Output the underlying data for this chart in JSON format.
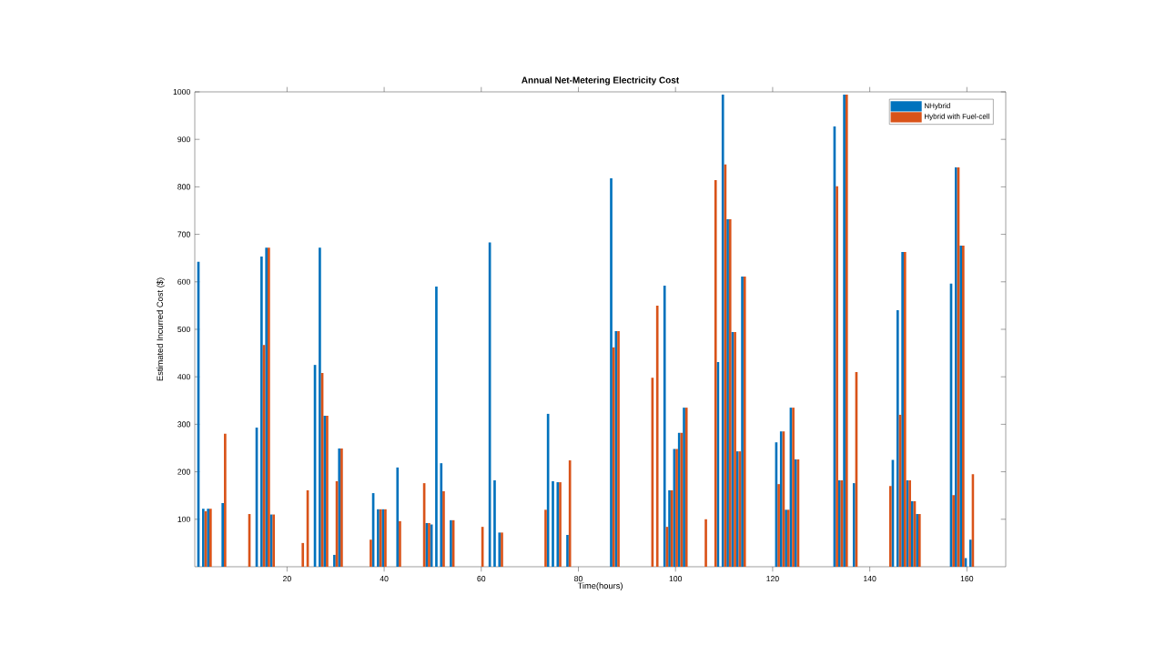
{
  "chart_data": {
    "type": "bar",
    "title": "Annual Net-Metering Electricity Cost",
    "xlabel": "Time(hours)",
    "ylabel": "Estimated Incurred Cost ($)",
    "x": [
      2,
      3,
      4,
      7,
      12,
      14,
      15,
      16,
      17,
      23,
      24,
      26,
      27,
      28,
      30,
      31,
      37,
      38,
      39,
      40,
      43,
      48,
      49,
      50,
      51,
      52,
      54,
      60,
      62,
      63,
      64,
      73,
      74,
      75,
      76,
      78,
      87,
      88,
      95,
      96,
      98,
      99,
      100,
      101,
      102,
      106,
      108,
      109,
      110,
      111,
      112,
      113,
      114,
      121,
      122,
      123,
      124,
      125,
      133,
      134,
      135,
      137,
      144,
      145,
      146,
      147,
      148,
      149,
      150,
      157,
      158,
      159,
      160,
      161
    ],
    "series": [
      {
        "name": "NHybrid",
        "color": "#0072bd",
        "values": [
          642,
          122,
          122,
          134,
          0,
          293,
          653,
          672,
          110,
          0,
          0,
          425,
          672,
          318,
          25,
          249,
          0,
          155,
          121,
          121,
          209,
          0,
          92,
          89,
          590,
          218,
          98,
          0,
          683,
          182,
          72,
          0,
          322,
          180,
          178,
          67,
          818,
          496,
          0,
          0,
          592,
          161,
          248,
          282,
          335,
          0,
          0,
          431,
          994,
          732,
          494,
          243,
          611,
          262,
          285,
          120,
          335,
          226,
          927,
          182,
          994,
          176,
          0,
          225,
          540,
          663,
          182,
          138,
          111,
          596,
          841,
          676,
          18,
          57
        ]
      },
      {
        "name": "Hybrid with Fuel-cell",
        "color": "#d95319",
        "values": [
          0,
          117,
          122,
          280,
          111,
          0,
          467,
          672,
          110,
          50,
          161,
          0,
          408,
          318,
          180,
          249,
          57,
          0,
          121,
          121,
          96,
          176,
          92,
          0,
          0,
          159,
          98,
          84,
          0,
          0,
          72,
          120,
          0,
          0,
          178,
          224,
          462,
          496,
          398,
          550,
          84,
          161,
          248,
          282,
          335,
          100,
          814,
          0,
          847,
          732,
          494,
          243,
          611,
          174,
          285,
          120,
          335,
          226,
          801,
          182,
          994,
          410,
          170,
          0,
          320,
          663,
          182,
          138,
          111,
          151,
          841,
          676,
          0,
          195
        ]
      }
    ],
    "xlim": [
      1,
      168
    ],
    "ylim": [
      0,
      1000
    ],
    "xticks": [
      20,
      40,
      60,
      80,
      100,
      120,
      140,
      160
    ],
    "yticks": [
      100,
      200,
      300,
      400,
      500,
      600,
      700,
      800,
      900,
      1000
    ],
    "grid": false,
    "legend": "top right"
  }
}
